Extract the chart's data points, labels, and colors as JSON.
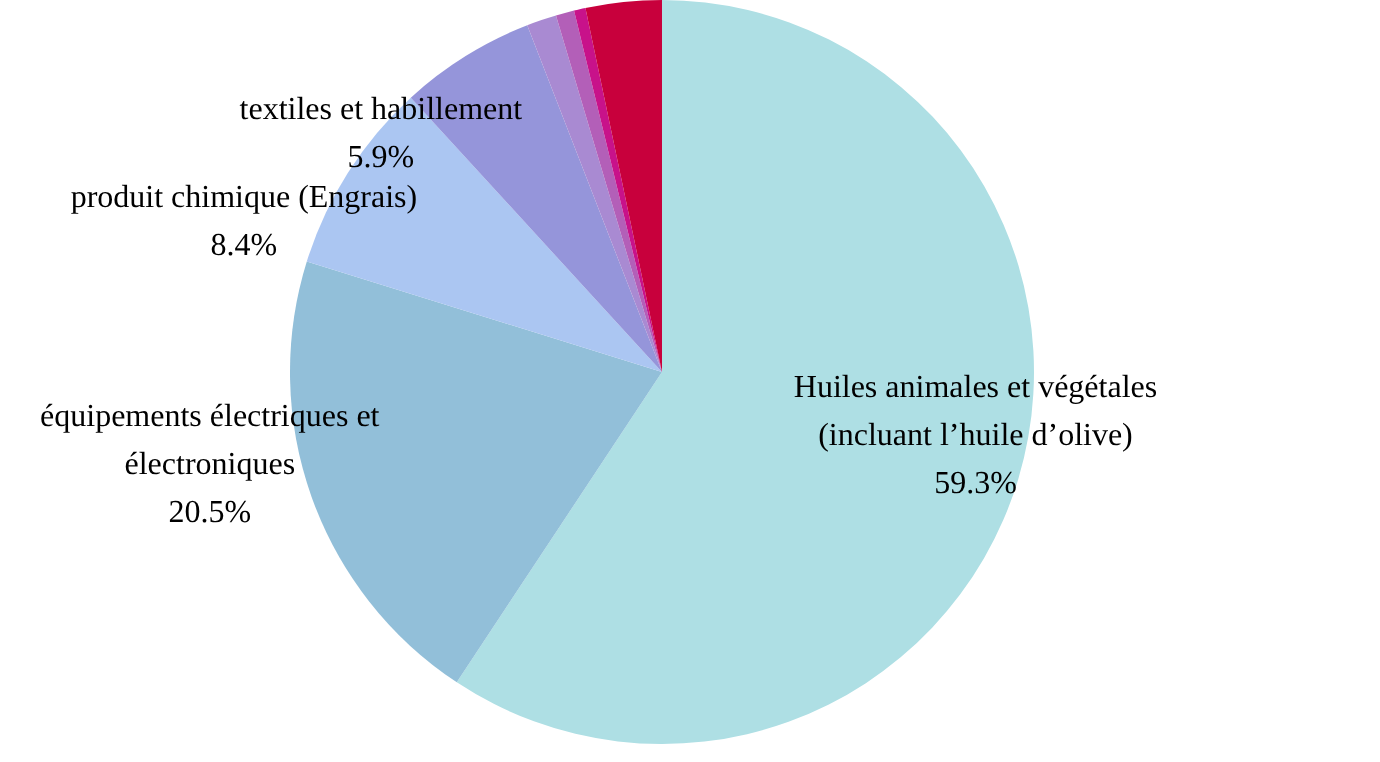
{
  "chart_data": {
    "type": "pie",
    "categories": [
      "Huiles animales et végétales (incluant l’huile d’olive)",
      "équipements électriques et électroniques",
      "produit chimique (Engrais)",
      "textiles et habillement",
      null,
      null,
      null,
      null
    ],
    "values": [
      59.3,
      20.5,
      8.4,
      5.9,
      1.3,
      0.8,
      0.5,
      3.3
    ],
    "value_labels": [
      "59.3%",
      "20.5%",
      "8.4%",
      "5.9%",
      null,
      null,
      null,
      null
    ],
    "colors": [
      "#aedfe4",
      "#92bfd9",
      "#abc6f2",
      "#9595da",
      "#a98ad2",
      "#b35fb8",
      "#c8128a",
      "#c8003c"
    ],
    "legend": false
  }
}
